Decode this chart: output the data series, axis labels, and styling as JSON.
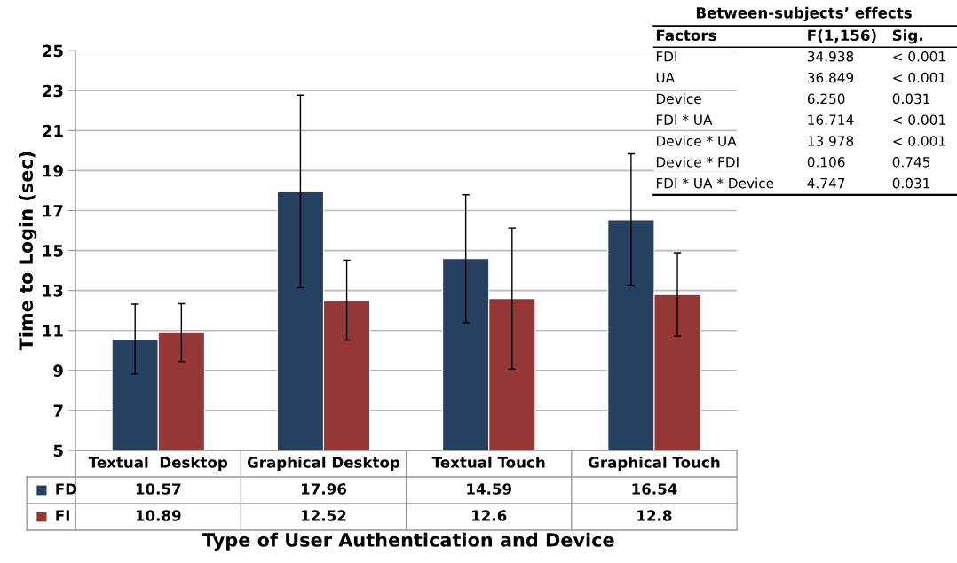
{
  "chart_data": {
    "type": "bar",
    "xlabel": "Type of User Authentication and Device",
    "ylabel": "Time to Login (sec)",
    "categories": [
      "Textual  Desktop",
      "Graphical Desktop",
      "Textual Touch",
      "Graphical Touch"
    ],
    "series": [
      {
        "name": "FD",
        "color": "#254061",
        "values": [
          10.57,
          17.96,
          14.59,
          16.54
        ],
        "errors": [
          1.75,
          4.82,
          3.2,
          3.3
        ]
      },
      {
        "name": "FI",
        "color": "#953735",
        "values": [
          10.89,
          12.52,
          12.6,
          12.8
        ],
        "errors": [
          1.45,
          2.0,
          3.53,
          2.09
        ]
      }
    ],
    "ylim": [
      5,
      25
    ],
    "yticks": [
      5,
      7,
      9,
      11,
      13,
      15,
      17,
      19,
      21,
      23,
      25
    ],
    "grid": "y",
    "data_labels": true,
    "legend": "bottom left",
    "annotations": [
      "Between-subjects’ effects",
      "Factors",
      "F(1,156)",
      "Sig.",
      "FDI",
      "34.938",
      "< 0.001",
      "UA",
      "36.849",
      "< 0.001",
      "Device",
      "6.250",
      "0.031",
      "FDI * UA",
      "16.714",
      "< 0.001",
      "Device * UA",
      "13.978",
      "< 0.001",
      "Device * FDI",
      "0.106",
      "0.745",
      "FDI * UA * Device",
      "4.747",
      "0.031"
    ]
  }
}
